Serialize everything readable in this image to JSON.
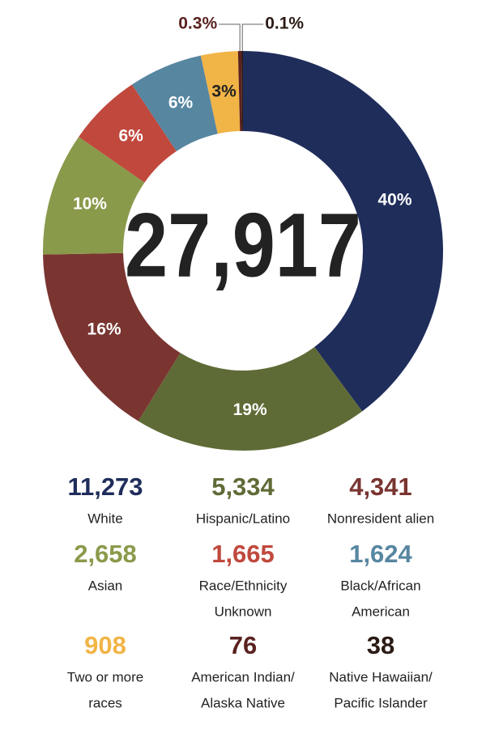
{
  "chart_data": {
    "type": "donut",
    "center_label": "27,917",
    "categories": [
      "White",
      "Hispanic/Latino",
      "Nonresident alien",
      "Asian",
      [
        "Race/Ethnicity",
        "Unknown"
      ],
      [
        "Black/African",
        "American"
      ],
      [
        "Two or more",
        "races"
      ],
      [
        "American Indian/",
        "Alaska Native"
      ],
      [
        "Native Hawaiian/",
        "Pacific Islander"
      ]
    ],
    "values": [
      40,
      19,
      16,
      10,
      6,
      6,
      3,
      0.3,
      0.1
    ],
    "value_labels": [
      "40%",
      "19%",
      "16%",
      "10%",
      "6%",
      "6%",
      "3%",
      "0.3%",
      "0.1%"
    ],
    "counts": [
      {
        "value": 11273,
        "label": "11,273"
      },
      {
        "value": 5334,
        "label": "5,334"
      },
      {
        "value": 4341,
        "label": "4,341"
      },
      {
        "value": 2658,
        "label": "2,658"
      },
      {
        "value": 1665,
        "label": "1,665"
      },
      {
        "value": 1624,
        "label": "1,624"
      },
      908,
      76,
      38
    ],
    "colors": [
      "#1f2d5b",
      "#5f6b36",
      "#7a3531",
      "#8a9a4b",
      "#c0483d",
      "#5786a1",
      "#f1b446",
      "#5b2220",
      "#2b1b15"
    ]
  }
}
